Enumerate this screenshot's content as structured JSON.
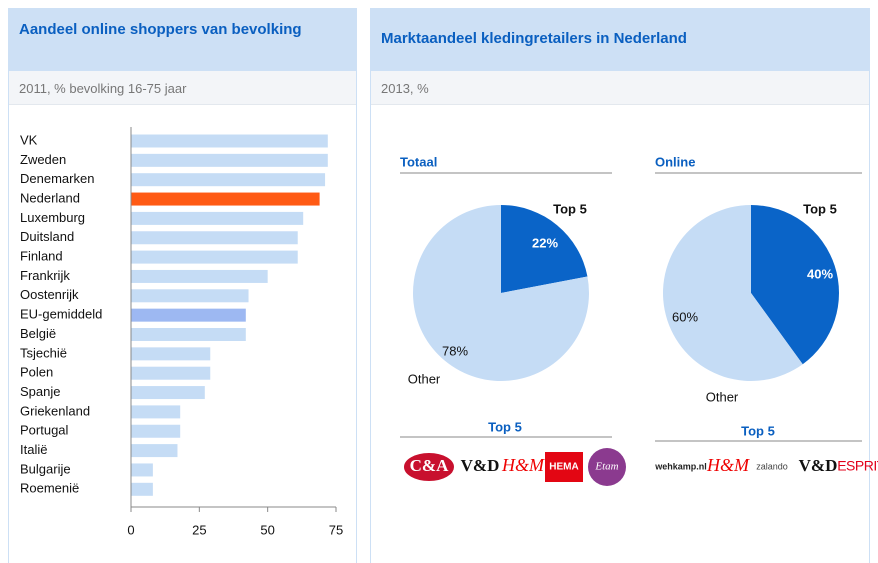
{
  "chart_data": [
    {
      "type": "hbar",
      "title": "Aandeel online shoppers van bevolking",
      "subtitle": "2011, % bevolking 16-75 jaar",
      "categories": [
        "VK",
        "Zweden",
        "Denemarken",
        "Nederland",
        "Luxemburg",
        "Duitsland",
        "Finland",
        "Frankrijk",
        "Oostenrijk",
        "EU-gemiddeld",
        "België",
        "Tsjechië",
        "Polen",
        "Spanje",
        "Griekenland",
        "Portugal",
        "Italië",
        "Bulgarije",
        "Roemenië"
      ],
      "values": [
        72,
        72,
        71,
        69,
        63,
        61,
        61,
        50,
        43,
        42,
        42,
        29,
        29,
        27,
        18,
        18,
        17,
        8,
        8
      ],
      "colors": [
        "#c5dcf5",
        "#c5dcf5",
        "#c5dcf5",
        "#ff5a14",
        "#c5dcf5",
        "#c5dcf5",
        "#c5dcf5",
        "#c5dcf5",
        "#c5dcf5",
        "#9db8f2",
        "#c5dcf5",
        "#c5dcf5",
        "#c5dcf5",
        "#c5dcf5",
        "#c5dcf5",
        "#c5dcf5",
        "#c5dcf5",
        "#c5dcf5",
        "#c5dcf5"
      ],
      "xlim": [
        0,
        75
      ],
      "xticks": [
        0,
        25,
        50,
        75
      ]
    },
    {
      "type": "pie",
      "panel_title": "Marktaandeel kledingretailers in Nederland",
      "panel_subtitle": "2013, %",
      "title": "Totaal",
      "categories": [
        "Top 5",
        "Other"
      ],
      "values": [
        22,
        78
      ],
      "value_labels": [
        "22%",
        "78%"
      ],
      "colors": [
        "#0a64c8",
        "#c5dcf5"
      ],
      "brands_title": "Top 5",
      "brands": [
        "C&A",
        "V&D",
        "H&M",
        "HEMA",
        "Etam"
      ]
    },
    {
      "type": "pie",
      "title": "Online",
      "categories": [
        "Top 5",
        "Other"
      ],
      "values": [
        40,
        60
      ],
      "value_labels": [
        "40%",
        "60%"
      ],
      "colors": [
        "#0a64c8",
        "#c5dcf5"
      ],
      "brands_title": "Top 5",
      "brands": [
        "wehkamp.nl",
        "H&M",
        "zalando",
        "V&D",
        "ESPRIT"
      ]
    }
  ]
}
